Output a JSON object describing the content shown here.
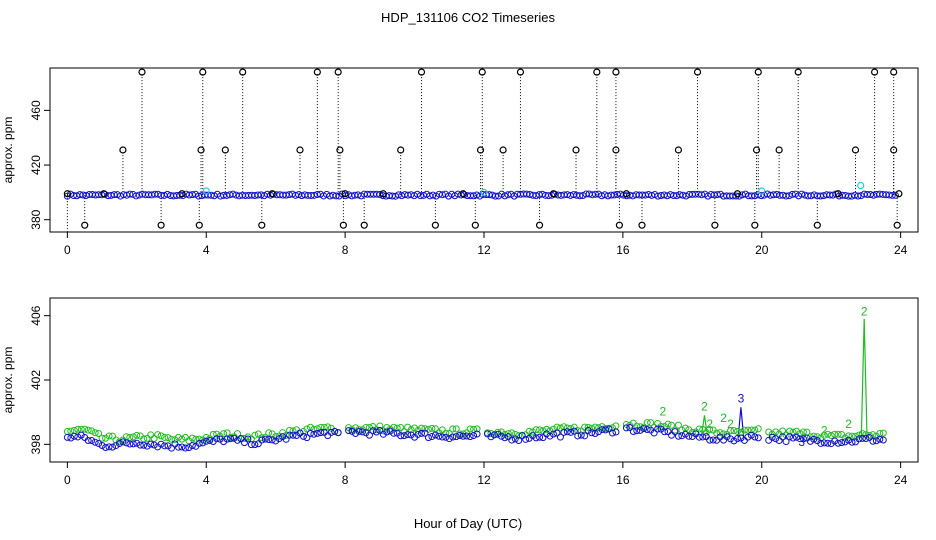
{
  "title": "HDP_131106  CO2 Timeseries",
  "xlabel": "Hour of Day (UTC)",
  "colors": {
    "black": "#000000",
    "blue": "#1010cc",
    "green": "#22bb22",
    "cyan": "#22ccdd"
  },
  "chart_data": [
    {
      "type": "scatter",
      "ylabel": "approx. ppm",
      "xlim": [
        -0.5,
        24.5
      ],
      "ylim": [
        371,
        491
      ],
      "xticks": [
        0,
        4,
        8,
        12,
        16,
        20,
        24
      ],
      "yticks": [
        380,
        420,
        460
      ],
      "baseline": 398,
      "spike_high": [
        2.15,
        3.9,
        5.05,
        7.2,
        7.8,
        10.2,
        11.95,
        13.05,
        15.25,
        15.8,
        18.15,
        19.9,
        21.05,
        23.25,
        23.8
      ],
      "spike_mid": [
        1.6,
        3.85,
        4.55,
        6.7,
        7.85,
        9.6,
        11.9,
        12.55,
        14.65,
        15.8,
        17.6,
        19.85,
        20.5,
        22.7,
        23.8
      ],
      "spike_low": [
        0.5,
        2.7,
        3.8,
        5.6,
        7.95,
        8.55,
        10.6,
        11.75,
        13.6,
        15.9,
        16.55,
        18.65,
        19.8,
        21.6,
        23.9
      ],
      "cyan_points": [
        [
          4.0,
          401
        ],
        [
          12.0,
          400
        ],
        [
          20.0,
          401
        ],
        [
          22.85,
          405
        ]
      ]
    },
    {
      "type": "scatter",
      "ylabel": "approx. ppm",
      "xlim": [
        -0.5,
        24.5
      ],
      "ylim": [
        396.9,
        407.1
      ],
      "xticks": [
        0,
        4,
        8,
        12,
        16,
        20,
        24
      ],
      "yticks": [
        398,
        402,
        406
      ],
      "gap": [
        15.85,
        20.2
      ],
      "series": [
        {
          "color": "green",
          "points": [
            [
              0,
              398.8
            ],
            [
              0.5,
              398.9
            ],
            [
              1,
              398.4
            ],
            [
              1.5,
              398.3
            ],
            [
              2,
              398.4
            ],
            [
              2.5,
              398.5
            ],
            [
              3,
              398.3
            ],
            [
              3.5,
              398.3
            ],
            [
              4,
              398.4
            ],
            [
              4.5,
              398.6
            ],
            [
              5,
              398.5
            ],
            [
              5.5,
              398.5
            ],
            [
              6,
              398.6
            ],
            [
              6.5,
              398.8
            ],
            [
              7,
              398.9
            ],
            [
              7.5,
              399.0
            ],
            [
              7.8,
              398.9
            ],
            [
              8,
              399.0
            ],
            [
              9,
              399.0
            ],
            [
              10,
              398.9
            ],
            [
              11,
              398.8
            ],
            [
              11.8,
              398.8
            ],
            [
              12,
              398.8
            ],
            [
              13,
              398.7
            ],
            [
              14,
              398.9
            ],
            [
              15,
              399.0
            ],
            [
              15.8,
              399.2
            ],
            [
              16,
              399.3
            ],
            [
              17,
              399.2
            ],
            [
              18,
              398.9
            ],
            [
              19,
              398.7
            ],
            [
              19.9,
              398.8
            ],
            [
              20.2,
              398.7
            ],
            [
              21,
              398.7
            ],
            [
              22,
              398.5
            ],
            [
              22.5,
              398.5
            ],
            [
              23,
              398.6
            ],
            [
              23.6,
              398.6
            ]
          ]
        },
        {
          "color": "blue",
          "points": [
            [
              0,
              398.5
            ],
            [
              0.5,
              398.4
            ],
            [
              1,
              397.9
            ],
            [
              1.5,
              398.0
            ],
            [
              2,
              398.1
            ],
            [
              2.5,
              398.0
            ],
            [
              3,
              397.9
            ],
            [
              3.5,
              397.9
            ],
            [
              4,
              398.1
            ],
            [
              4.5,
              398.3
            ],
            [
              5,
              398.2
            ],
            [
              5.5,
              398.1
            ],
            [
              6,
              398.3
            ],
            [
              6.5,
              398.5
            ],
            [
              7,
              398.6
            ],
            [
              7.5,
              398.7
            ],
            [
              7.8,
              398.6
            ],
            [
              8,
              398.8
            ],
            [
              9,
              398.7
            ],
            [
              10,
              398.6
            ],
            [
              11,
              398.5
            ],
            [
              11.8,
              398.5
            ],
            [
              12,
              398.5
            ],
            [
              13,
              398.4
            ],
            [
              14,
              398.6
            ],
            [
              15,
              398.7
            ],
            [
              15.8,
              398.9
            ],
            [
              16,
              399.0
            ],
            [
              17,
              398.8
            ],
            [
              18,
              398.5
            ],
            [
              19,
              398.3
            ],
            [
              19.9,
              398.5
            ],
            [
              20.2,
              398.4
            ],
            [
              21,
              398.3
            ],
            [
              22,
              398.2
            ],
            [
              22.5,
              398.2
            ],
            [
              23,
              398.3
            ],
            [
              23.6,
              398.3
            ]
          ]
        }
      ],
      "labels": [
        {
          "text": "2",
          "x": 17.15,
          "y": 399.8,
          "color": "green"
        },
        {
          "text": "2",
          "x": 18.35,
          "y": 400.1,
          "color": "green"
        },
        {
          "text": "2",
          "x": 18.9,
          "y": 399.4,
          "color": "green"
        },
        {
          "text": "2",
          "x": 18.5,
          "y": 399.0,
          "color": "green"
        },
        {
          "text": "2",
          "x": 19.1,
          "y": 399.0,
          "color": "green"
        },
        {
          "text": "3",
          "x": 19.4,
          "y": 400.6,
          "color": "blue"
        },
        {
          "text": "2",
          "x": 21.8,
          "y": 398.6,
          "color": "green"
        },
        {
          "text": "2",
          "x": 22.5,
          "y": 399.0,
          "color": "green"
        },
        {
          "text": "2",
          "x": 22.95,
          "y": 406.0,
          "color": "green"
        },
        {
          "text": "3",
          "x": 21.15,
          "y": 397.9,
          "color": "blue"
        }
      ],
      "spikes": [
        {
          "x": 18.35,
          "y": 399.8,
          "color": "green"
        },
        {
          "x": 19.4,
          "y": 400.3,
          "color": "blue"
        },
        {
          "x": 22.95,
          "y": 405.8,
          "color": "green"
        }
      ]
    }
  ]
}
